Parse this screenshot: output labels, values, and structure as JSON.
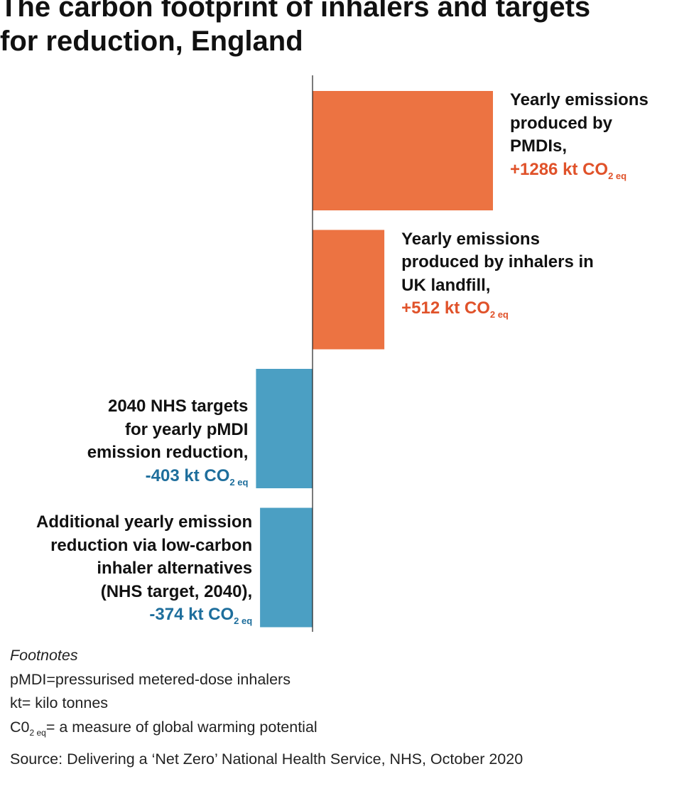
{
  "title_lines": [
    "The carbon footprint of inhalers and targets",
    "for reduction, England"
  ],
  "chart_data": {
    "type": "bar",
    "orientation": "horizontal",
    "unit": "kt CO2 eq",
    "categories": [
      "Yearly emissions produced by PMDIs",
      "Yearly emissions produced by inhalers in UK landfill",
      "2040 NHS targets for yearly pMDI emission reduction",
      "Additional yearly emission reduction via low-carbon inhaler alternatives (NHS target, 2040)"
    ],
    "values": [
      1286,
      512,
      -403,
      -374
    ],
    "colors": {
      "positive": "#ec7342",
      "negative": "#4b9fc3",
      "positive_text": "#e0522a",
      "negative_text": "#1e6e9c",
      "axis": "#222222"
    },
    "labels": [
      {
        "lines": [
          "Yearly emissions",
          "produced by",
          "PMDIs,"
        ],
        "value_main": "+1286 kt CO",
        "value_sub": "2 eq"
      },
      {
        "lines": [
          "Yearly emissions",
          "produced by inhalers in",
          "UK landfill,"
        ],
        "value_main": "+512 kt CO",
        "value_sub": "2 eq"
      },
      {
        "lines": [
          "2040 NHS targets",
          "for yearly pMDI",
          "emission reduction,"
        ],
        "value_main": "-403 kt CO",
        "value_sub": "2 eq"
      },
      {
        "lines": [
          "Additional yearly emission",
          "reduction via low-carbon",
          "inhaler alternatives",
          "(NHS target, 2040),"
        ],
        "value_main": "-374 kt CO",
        "value_sub": "2 eq"
      }
    ],
    "grid": false,
    "legend": "none"
  },
  "footnotes": {
    "heading": "Footnotes",
    "line1": "pMDI=pressurised metered-dose inhalers",
    "line2": "kt= kilo tonnes",
    "line3_main": "C0",
    "line3_sub": "2 eq",
    "line3_rest": "= a measure of global warming potential"
  },
  "source": "Source: Delivering a ‘Net Zero’ National Health Service, NHS, October 2020"
}
